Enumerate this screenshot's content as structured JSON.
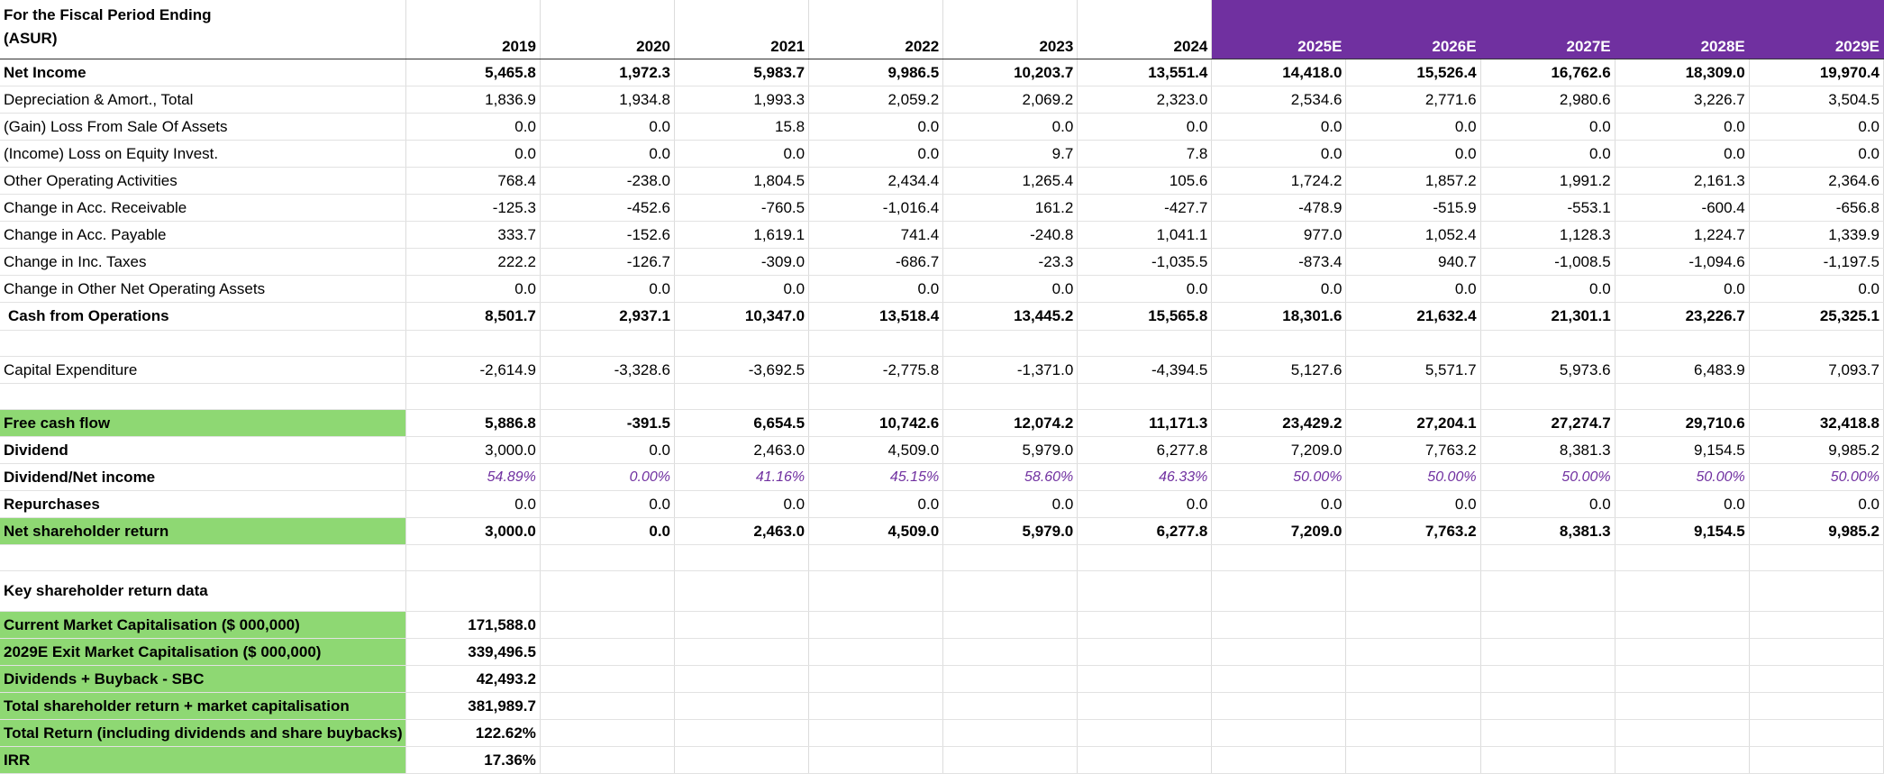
{
  "header": {
    "title_line1": "For the Fiscal Period Ending",
    "title_line2": "(ASUR)",
    "years": [
      "2019",
      "2020",
      "2021",
      "2022",
      "2023",
      "2024",
      "2025E",
      "2026E",
      "2027E",
      "2028E",
      "2029E"
    ],
    "estimate_color": "#7030a0"
  },
  "rows": {
    "net_income": {
      "label": "Net Income",
      "values": [
        "5,465.8",
        "1,972.3",
        "5,983.7",
        "9,986.5",
        "10,203.7",
        "13,551.4",
        "14,418.0",
        "15,526.4",
        "16,762.6",
        "18,309.0",
        "19,970.4"
      ]
    },
    "dep_amort": {
      "label": "Depreciation & Amort., Total",
      "values": [
        "1,836.9",
        "1,934.8",
        "1,993.3",
        "2,059.2",
        "2,069.2",
        "2,323.0",
        "2,534.6",
        "2,771.6",
        "2,980.6",
        "3,226.7",
        "3,504.5"
      ]
    },
    "gain_loss_assets": {
      "label": "(Gain) Loss From Sale Of Assets",
      "values": [
        "0.0",
        "0.0",
        "15.8",
        "0.0",
        "0.0",
        "0.0",
        "0.0",
        "0.0",
        "0.0",
        "0.0",
        "0.0"
      ]
    },
    "equity_invest": {
      "label": "(Income) Loss on Equity Invest.",
      "values": [
        "0.0",
        "0.0",
        "0.0",
        "0.0",
        "9.7",
        "7.8",
        "0.0",
        "0.0",
        "0.0",
        "0.0",
        "0.0"
      ]
    },
    "other_operating": {
      "label": "Other Operating Activities",
      "values": [
        "768.4",
        "-238.0",
        "1,804.5",
        "2,434.4",
        "1,265.4",
        "105.6",
        "1,724.2",
        "1,857.2",
        "1,991.2",
        "2,161.3",
        "2,364.6"
      ]
    },
    "acc_receivable": {
      "label": "Change in Acc. Receivable",
      "values": [
        "-125.3",
        "-452.6",
        "-760.5",
        "-1,016.4",
        "161.2",
        "-427.7",
        "-478.9",
        "-515.9",
        "-553.1",
        "-600.4",
        "-656.8"
      ]
    },
    "acc_payable": {
      "label": "Change in Acc. Payable",
      "values": [
        "333.7",
        "-152.6",
        "1,619.1",
        "741.4",
        "-240.8",
        "1,041.1",
        "977.0",
        "1,052.4",
        "1,128.3",
        "1,224.7",
        "1,339.9"
      ]
    },
    "inc_taxes": {
      "label": "Change in Inc. Taxes",
      "values": [
        "222.2",
        "-126.7",
        "-309.0",
        "-686.7",
        "-23.3",
        "-1,035.5",
        "-873.4",
        "940.7",
        "-1,008.5",
        "-1,094.6",
        "-1,197.5"
      ]
    },
    "other_net_operating": {
      "label": "Change in Other Net Operating Assets",
      "values": [
        "0.0",
        "0.0",
        "0.0",
        "0.0",
        "0.0",
        "0.0",
        "0.0",
        "0.0",
        "0.0",
        "0.0",
        "0.0"
      ]
    },
    "cash_from_ops": {
      "label": "Cash from Operations",
      "values": [
        "8,501.7",
        "2,937.1",
        "10,347.0",
        "13,518.4",
        "13,445.2",
        "15,565.8",
        "18,301.6",
        "21,632.4",
        "21,301.1",
        "23,226.7",
        "25,325.1"
      ]
    },
    "capex": {
      "label": "Capital Expenditure",
      "values": [
        "-2,614.9",
        "-3,328.6",
        "-3,692.5",
        "-2,775.8",
        "-1,371.0",
        "-4,394.5",
        "5,127.6",
        "5,571.7",
        "5,973.6",
        "6,483.9",
        "7,093.7"
      ]
    },
    "fcf": {
      "label": "Free cash flow",
      "values": [
        "5,886.8",
        "-391.5",
        "6,654.5",
        "10,742.6",
        "12,074.2",
        "11,171.3",
        "23,429.2",
        "27,204.1",
        "27,274.7",
        "29,710.6",
        "32,418.8"
      ]
    },
    "dividend": {
      "label": "Dividend",
      "values": [
        "3,000.0",
        "0.0",
        "2,463.0",
        "4,509.0",
        "5,979.0",
        "6,277.8",
        "7,209.0",
        "7,763.2",
        "8,381.3",
        "9,154.5",
        "9,985.2"
      ]
    },
    "div_net_income": {
      "label": "Dividend/Net income",
      "values": [
        "54.89%",
        "0.00%",
        "41.16%",
        "45.15%",
        "58.60%",
        "46.33%",
        "50.00%",
        "50.00%",
        "50.00%",
        "50.00%",
        "50.00%"
      ]
    },
    "repurchases": {
      "label": "Repurchases",
      "values": [
        "0.0",
        "0.0",
        "0.0",
        "0.0",
        "0.0",
        "0.0",
        "0.0",
        "0.0",
        "0.0",
        "0.0",
        "0.0"
      ]
    },
    "net_sh_return": {
      "label": "Net shareholder return",
      "values": [
        "3,000.0",
        "0.0",
        "2,463.0",
        "4,509.0",
        "5,979.0",
        "6,277.8",
        "7,209.0",
        "7,763.2",
        "8,381.3",
        "9,154.5",
        "9,985.2"
      ]
    }
  },
  "key_data": {
    "title": "Key shareholder return data",
    "items": [
      {
        "label": "Current Market Capitalisation ($ 000,000)",
        "value": "171,588.0"
      },
      {
        "label": "2029E Exit Market Capitalisation ($ 000,000)",
        "value": "339,496.5"
      },
      {
        "label": "Dividends + Buyback - SBC",
        "value": "42,493.2"
      },
      {
        "label": "Total shareholder return + market capitalisation",
        "value": "381,989.7"
      },
      {
        "label": "Total Return (including dividends and share buybacks)",
        "value": "122.62%"
      },
      {
        "label": "IRR",
        "value": "17.36%"
      }
    ]
  },
  "colors": {
    "green_highlight": "#8ed873",
    "estimate_header": "#7030a0",
    "ratio_text": "#7030a0"
  }
}
